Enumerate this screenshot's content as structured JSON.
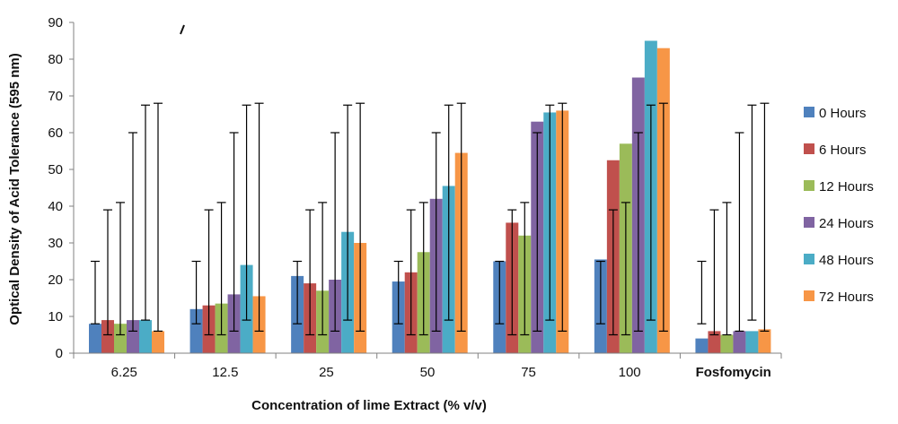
{
  "chart_data": {
    "type": "bar",
    "xlabel": "Concentration of lime Extract (% v/v)",
    "ylabel": "Optical Density of Acid Tolerance (595 nm)",
    "ylim": [
      0,
      90
    ],
    "yticks": [
      0,
      10,
      20,
      30,
      40,
      50,
      60,
      70,
      80,
      90
    ],
    "grid": false,
    "legend_position": "right",
    "categories": [
      "6.25",
      "12.5",
      "25",
      "50",
      "75",
      "100",
      "Fosfomycin"
    ],
    "series": [
      {
        "name": "0 Hours",
        "color": "#4f81bd",
        "values": [
          8,
          12,
          21,
          19.5,
          25,
          25.5,
          4
        ],
        "error_range": [
          8,
          25
        ]
      },
      {
        "name": "6 Hours",
        "color": "#c0504d",
        "values": [
          9,
          13,
          19,
          22,
          35.5,
          52.5,
          6
        ],
        "error_range": [
          5,
          39
        ]
      },
      {
        "name": "12 Hours",
        "color": "#9bbb59",
        "values": [
          8,
          13.5,
          17,
          27.5,
          32,
          57,
          5
        ],
        "error_range": [
          5,
          41
        ]
      },
      {
        "name": "24 Hours",
        "color": "#8064a2",
        "values": [
          9,
          16,
          20,
          42,
          63,
          75,
          6
        ],
        "error_range": [
          6,
          60
        ]
      },
      {
        "name": "48 Hours",
        "color": "#4bacc6",
        "values": [
          9,
          24,
          33,
          45.5,
          65.5,
          85,
          6
        ],
        "error_range": [
          9,
          67.5
        ]
      },
      {
        "name": "72 Hours",
        "color": "#f79646",
        "values": [
          6,
          15.5,
          30,
          54.5,
          66,
          83,
          6.5
        ],
        "error_range": [
          6,
          68
        ]
      }
    ]
  }
}
